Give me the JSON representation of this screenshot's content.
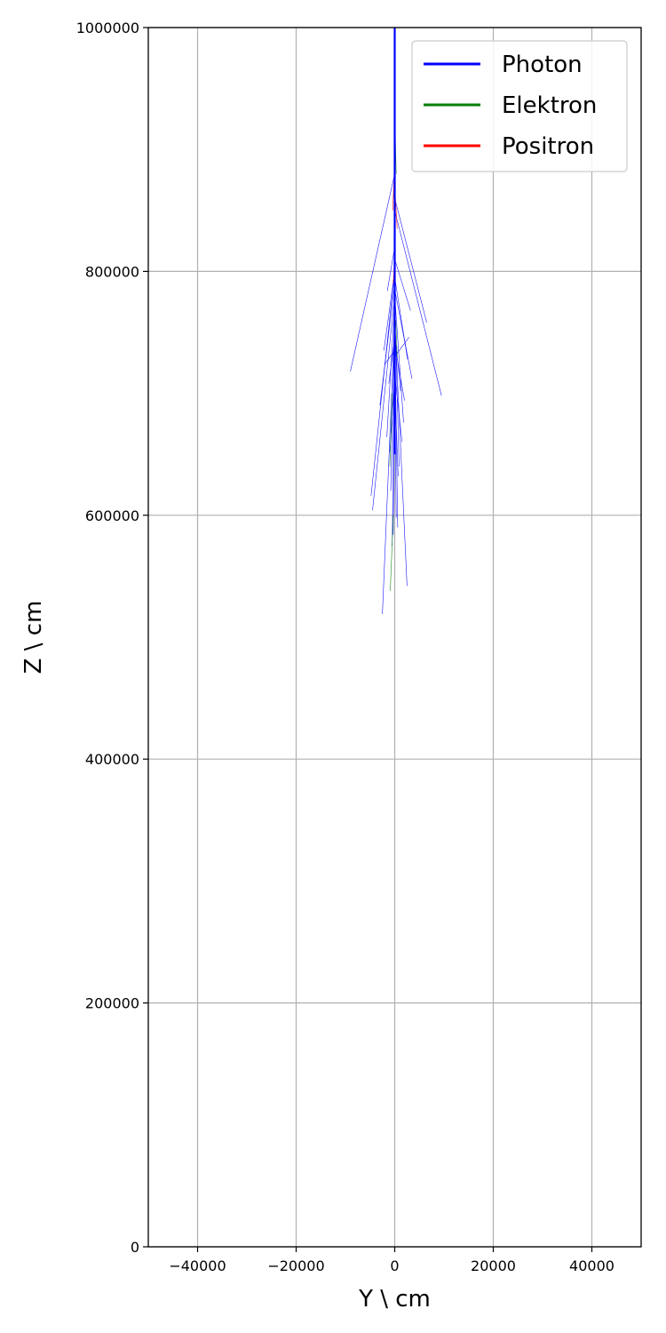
{
  "chart_data": {
    "type": "line",
    "xlabel": "Y \\ cm",
    "ylabel": "Z \\ cm",
    "xlim": [
      -50000,
      50000
    ],
    "ylim": [
      0,
      1000000
    ],
    "xticks": [
      -40000,
      -20000,
      0,
      20000,
      40000
    ],
    "xtick_labels": [
      "−40000",
      "−20000",
      "0",
      "20000",
      "40000"
    ],
    "yticks": [
      0,
      200000,
      400000,
      600000,
      800000,
      1000000
    ],
    "ytick_labels": [
      "0",
      "200000",
      "400000",
      "600000",
      "800000",
      "1000000"
    ],
    "grid": true,
    "legend_position": "top-right",
    "series": [
      {
        "name": "Photon",
        "color": "#0000ff",
        "segments": [
          [
            [
              0,
              1000000
            ],
            [
              0,
              880000
            ]
          ],
          [
            [
              0,
              880000
            ],
            [
              -9000,
              718000
            ]
          ],
          [
            [
              0,
              860000
            ],
            [
              6500,
              758000
            ]
          ],
          [
            [
              0,
              850000
            ],
            [
              9500,
              698000
            ]
          ],
          [
            [
              0,
              800000
            ],
            [
              -4800,
              616000
            ]
          ],
          [
            [
              0,
              780000
            ],
            [
              -4500,
              604000
            ]
          ],
          [
            [
              0,
              760000
            ],
            [
              -2500,
              519000
            ]
          ],
          [
            [
              0,
              760000
            ],
            [
              2500,
              542000
            ]
          ],
          [
            [
              0,
              820000
            ],
            [
              -1500,
              784000
            ]
          ],
          [
            [
              0,
              810000
            ],
            [
              3200,
              768000
            ]
          ],
          [
            [
              0,
              800000
            ],
            [
              -2200,
              735000
            ]
          ],
          [
            [
              0,
              795000
            ],
            [
              2600,
              728000
            ]
          ],
          [
            [
              0,
              790000
            ],
            [
              -3000,
              690000
            ]
          ],
          [
            [
              0,
              785000
            ],
            [
              3500,
              712000
            ]
          ],
          [
            [
              0,
              780000
            ],
            [
              1800,
              676000
            ]
          ],
          [
            [
              0,
              775000
            ],
            [
              -1600,
              664000
            ]
          ],
          [
            [
              0,
              770000
            ],
            [
              900,
              640000
            ]
          ],
          [
            [
              0,
              765000
            ],
            [
              -800,
              620000
            ]
          ],
          [
            [
              0,
              760000
            ],
            [
              600,
              590000
            ]
          ],
          [
            [
              0,
              755000
            ],
            [
              -500,
              575000
            ]
          ],
          [
            [
              0,
              750000
            ],
            [
              1200,
              702000
            ]
          ],
          [
            [
              0,
              745000
            ],
            [
              -1200,
              708000
            ]
          ],
          [
            [
              0,
              740000
            ],
            [
              2000,
              694000
            ]
          ],
          [
            [
              0,
              735000
            ],
            [
              -2000,
              724000
            ]
          ],
          [
            [
              0,
              730000
            ],
            [
              2900,
              746000
            ]
          ],
          [
            [
              0,
              725000
            ],
            [
              300,
              598000
            ]
          ],
          [
            [
              0,
              720000
            ],
            [
              -300,
              584000
            ]
          ],
          [
            [
              0,
              715000
            ],
            [
              1500,
              660000
            ]
          ],
          [
            [
              0,
              710000
            ],
            [
              -1000,
              652000
            ]
          ],
          [
            [
              0,
              705000
            ],
            [
              700,
              632000
            ]
          ]
        ]
      },
      {
        "name": "Elektron",
        "color": "#008000",
        "segments": [
          [
            [
              0,
              930000
            ],
            [
              300,
              880000
            ]
          ],
          [
            [
              0,
              900000
            ],
            [
              -200,
              860000
            ]
          ],
          [
            [
              -500,
              700000
            ],
            [
              -1000,
              640000
            ]
          ],
          [
            [
              -300,
              600000
            ],
            [
              -900,
              538000
            ]
          ],
          [
            [
              200,
              760000
            ],
            [
              500,
              730000
            ]
          ]
        ]
      },
      {
        "name": "Positron",
        "color": "#ff0000",
        "segments": [
          [
            [
              0,
              890000
            ],
            [
              -400,
              850000
            ]
          ],
          [
            [
              0,
              870000
            ],
            [
              500,
              835000
            ]
          ],
          [
            [
              100,
              820000
            ],
            [
              -300,
              790000
            ]
          ],
          [
            [
              -200,
              760000
            ],
            [
              200,
              740000
            ]
          ]
        ]
      }
    ]
  }
}
